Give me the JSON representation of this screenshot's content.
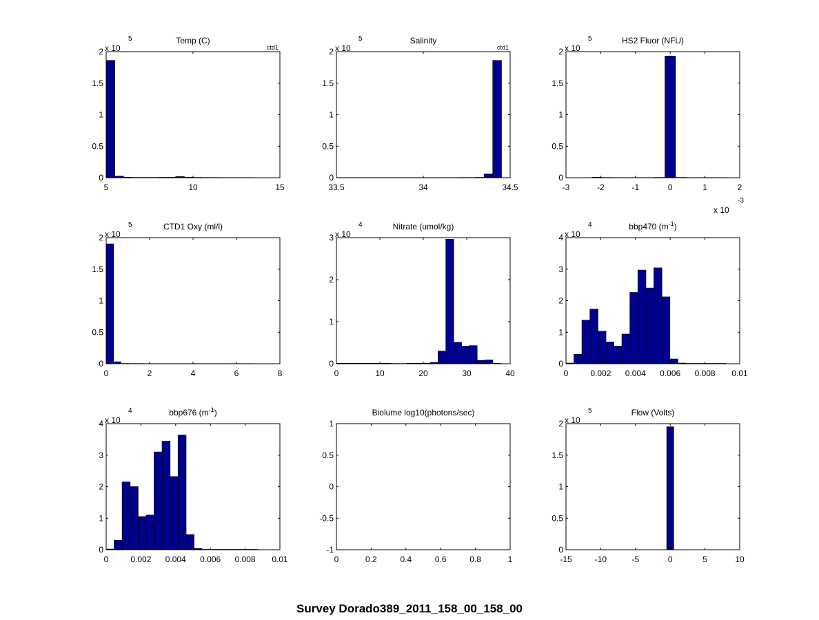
{
  "figure_title": "Survey Dorado389_2011_158_00_158_00",
  "bar_color": "#00008f",
  "chart_data": [
    {
      "type": "bar",
      "title": "Temp (C)",
      "corner_label": "ctd1",
      "xlim": [
        5,
        15
      ],
      "ylim": [
        0,
        2
      ],
      "xticks": [
        "5",
        "10",
        "15"
      ],
      "yticks": [
        "0",
        "0.5",
        "1",
        "1.5",
        "2"
      ],
      "multiplier": {
        "base": "x 10",
        "exp": "5"
      },
      "bins": [
        5.25,
        5.75,
        6.25,
        6.75,
        7.25,
        7.75,
        8.25,
        8.75,
        9.25,
        9.75,
        10.25,
        10.75,
        11.25,
        11.75,
        12.25,
        12.75,
        13.25,
        13.75,
        14.25,
        14.75
      ],
      "values": [
        1.86,
        0.025,
        0.006,
        0.004,
        0.004,
        0.004,
        0.005,
        0.006,
        0.018,
        0.006,
        0.004,
        0.003,
        0.003,
        0.002,
        0.002,
        0.002,
        0.002,
        0.001,
        0.001,
        0.001
      ]
    },
    {
      "type": "bar",
      "title": "Salinity",
      "corner_label": "ctd1",
      "xlim": [
        33.5,
        34.5
      ],
      "ylim": [
        0,
        2
      ],
      "xticks": [
        "33.5",
        "34",
        "34.5"
      ],
      "yticks": [
        "0",
        "0.5",
        "1",
        "1.5",
        "2"
      ],
      "multiplier": {
        "base": "x 10",
        "exp": "5"
      },
      "bins": [
        33.525,
        33.575,
        33.625,
        33.675,
        33.725,
        33.775,
        33.825,
        33.875,
        33.925,
        33.975,
        34.025,
        34.075,
        34.125,
        34.175,
        34.225,
        34.275,
        34.325,
        34.375,
        34.425
      ],
      "values": [
        0.002,
        0.002,
        0.002,
        0.002,
        0.002,
        0.002,
        0.002,
        0.002,
        0.002,
        0.002,
        0.002,
        0.002,
        0.002,
        0.002,
        0.003,
        0.003,
        0.005,
        0.06,
        1.86
      ]
    },
    {
      "type": "bar",
      "title": "HS2 Fluor (NFU)",
      "corner_label": "",
      "xlim": [
        -3,
        2
      ],
      "ylim": [
        0,
        2
      ],
      "xticks": [
        "-3",
        "-2",
        "-1",
        "0",
        "1",
        "2"
      ],
      "yticks": [
        "0",
        "0.5",
        "1",
        "1.5",
        "2"
      ],
      "multiplier": {
        "base": "x 10",
        "exp": "5"
      },
      "x_multiplier": {
        "base": "x 10",
        "exp": "-3"
      },
      "bins": [
        -2.1,
        -1.8,
        -1.5,
        -1.2,
        -0.9,
        -0.6,
        -0.3,
        0.0,
        0.3,
        0.6,
        0.9,
        1.2,
        1.5
      ],
      "values": [
        0.006,
        0.003,
        0.002,
        0.002,
        0.002,
        0.002,
        0.004,
        1.93,
        0.004,
        0.002,
        0.002,
        0.002,
        0.002
      ]
    },
    {
      "type": "bar",
      "title": "CTD1 Oxy (ml/l)",
      "corner_label": "",
      "xlim": [
        0,
        8
      ],
      "ylim": [
        0,
        2
      ],
      "xticks": [
        "0",
        "2",
        "4",
        "6",
        "8"
      ],
      "yticks": [
        "0",
        "0.5",
        "1",
        "1.5",
        "2"
      ],
      "multiplier": {
        "base": "x 10",
        "exp": "5"
      },
      "bins": [
        0.17,
        0.51,
        0.85,
        1.19,
        1.53,
        1.87,
        2.21,
        2.55,
        2.89,
        3.23,
        3.57,
        3.91,
        4.25,
        4.59,
        4.93,
        5.27,
        5.61,
        5.95,
        6.29,
        6.63
      ],
      "values": [
        1.9,
        0.03,
        0.004,
        0.003,
        0.003,
        0.002,
        0.002,
        0.002,
        0.002,
        0.002,
        0.002,
        0.002,
        0.002,
        0.002,
        0.002,
        0.002,
        0.002,
        0.002,
        0.002,
        0.002
      ]
    },
    {
      "type": "bar",
      "title": "Nitrate (umol/kg)",
      "corner_label": "",
      "xlim": [
        0,
        40
      ],
      "ylim": [
        0,
        3
      ],
      "xticks": [
        "0",
        "10",
        "20",
        "30",
        "40"
      ],
      "yticks": [
        "0",
        "1",
        "2",
        "3"
      ],
      "multiplier": {
        "base": "x 10",
        "exp": "4"
      },
      "bins": [
        0.9,
        2.7,
        4.5,
        6.3,
        8.1,
        9.9,
        11.7,
        13.5,
        15.3,
        17.1,
        18.9,
        20.7,
        22.5,
        24.3,
        26.1,
        27.9,
        29.7,
        31.5,
        33.3,
        35.1,
        36.9
      ],
      "values": [
        0.01,
        0.01,
        0.01,
        0.01,
        0.01,
        0.01,
        0.01,
        0.005,
        0.005,
        0.01,
        0.01,
        0.01,
        0.03,
        0.3,
        2.96,
        0.51,
        0.42,
        0.43,
        0.08,
        0.09,
        0.01
      ]
    },
    {
      "type": "bar",
      "title": "bbp470 (m",
      "title_sup": "-1",
      "title_after": ")",
      "corner_label": "",
      "xlim": [
        0,
        0.01
      ],
      "ylim": [
        0,
        4
      ],
      "xticks": [
        "0",
        "0.002",
        "0.004",
        "0.006",
        "0.008",
        "0.01"
      ],
      "yticks": [
        "0",
        "1",
        "2",
        "3",
        "4"
      ],
      "multiplier": {
        "base": "x 10",
        "exp": "4"
      },
      "bins": [
        0.00023,
        0.00069,
        0.00115,
        0.00161,
        0.00207,
        0.00253,
        0.00299,
        0.00345,
        0.00391,
        0.00437,
        0.00483,
        0.00529,
        0.00575,
        0.00621,
        0.00667,
        0.00713,
        0.00759,
        0.00805,
        0.00851,
        0.00897
      ],
      "values": [
        0.02,
        0.3,
        1.38,
        1.73,
        1.03,
        0.69,
        0.56,
        0.94,
        2.26,
        2.97,
        2.4,
        3.04,
        2.12,
        0.15,
        0.02,
        0.01,
        0.01,
        0.01,
        0.01,
        0.01
      ]
    },
    {
      "type": "bar",
      "title": "bbp676 (m",
      "title_sup": "-1",
      "title_after": ")",
      "corner_label": "",
      "xlim": [
        0,
        0.01
      ],
      "ylim": [
        0,
        4
      ],
      "xticks": [
        "0",
        "0.002",
        "0.004",
        "0.006",
        "0.008",
        "0.01"
      ],
      "yticks": [
        "0",
        "1",
        "2",
        "3",
        "4"
      ],
      "multiplier": {
        "base": "x 10",
        "exp": "4"
      },
      "bins": [
        0.00023,
        0.00069,
        0.00115,
        0.00161,
        0.00207,
        0.00253,
        0.00299,
        0.00345,
        0.00391,
        0.00437,
        0.00483,
        0.00529,
        0.00575,
        0.00621,
        0.00667,
        0.00713,
        0.00759,
        0.00805,
        0.00851
      ],
      "values": [
        0.02,
        0.3,
        2.15,
        2.0,
        1.05,
        1.1,
        3.1,
        3.44,
        2.32,
        3.64,
        0.48,
        0.04,
        0.01,
        0.01,
        0.01,
        0.01,
        0.01,
        0.01,
        0.01
      ]
    },
    {
      "type": "bar",
      "title": "Biolume log10(photons/sec)",
      "corner_label": "",
      "xlim": [
        0,
        1
      ],
      "ylim": [
        -1,
        1
      ],
      "xticks": [
        "0",
        "0.2",
        "0.4",
        "0.6",
        "0.8",
        "1"
      ],
      "yticks": [
        "-1",
        "-0.5",
        "0",
        "0.5",
        "1"
      ],
      "bins": [],
      "values": []
    },
    {
      "type": "bar",
      "title": "Flow (Volts)",
      "corner_label": "",
      "xlim": [
        -15,
        10
      ],
      "ylim": [
        0,
        2
      ],
      "xticks": [
        "-15",
        "-10",
        "-5",
        "0",
        "5",
        "10"
      ],
      "yticks": [
        "0",
        "0.5",
        "1",
        "1.5",
        "2"
      ],
      "multiplier": {
        "base": "x 10",
        "exp": "5"
      },
      "bins": [
        0.0
      ],
      "values": [
        1.95
      ]
    }
  ]
}
